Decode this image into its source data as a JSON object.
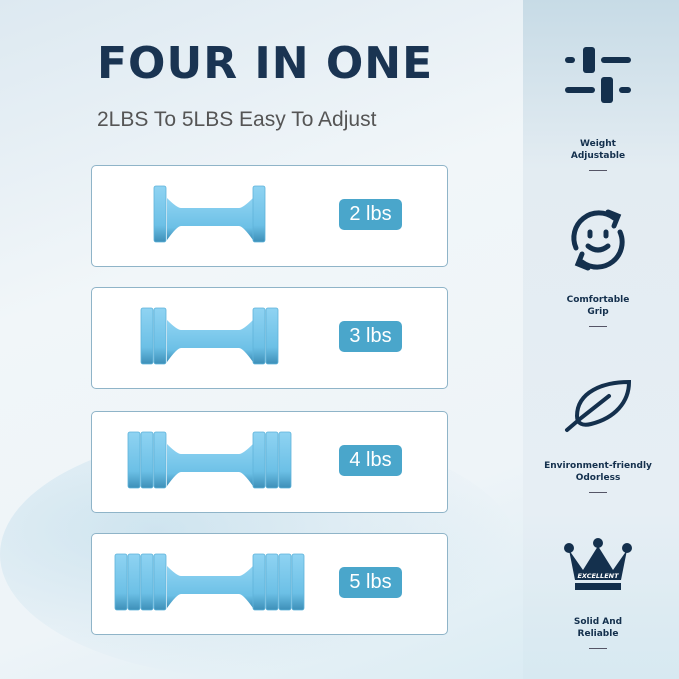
{
  "title": "FOUR IN ONE",
  "subtitle": "2LBS To 5LBS Easy To Adjust",
  "options": [
    {
      "label": "2 lbs",
      "plates": 1
    },
    {
      "label": "3 lbs",
      "plates": 2
    },
    {
      "label": "4 lbs",
      "plates": 3
    },
    {
      "label": "5 lbs",
      "plates": 4
    }
  ],
  "features": [
    {
      "icon": "sliders-icon",
      "line1": "Weight",
      "line2": "Adjustable"
    },
    {
      "icon": "smiley-refresh-icon",
      "line1": "Comfortable",
      "line2": "Grip"
    },
    {
      "icon": "leaf-icon",
      "line1": "Environment-friendly",
      "line2": "Odorless"
    },
    {
      "icon": "crown-icon",
      "line1": "Solid And",
      "line2": "Reliable",
      "badge": "EXCELLENT"
    }
  ],
  "colors": {
    "navy": "#14304d",
    "accent": "#4aa6cb",
    "dumbbell": "#7fc9ea"
  }
}
